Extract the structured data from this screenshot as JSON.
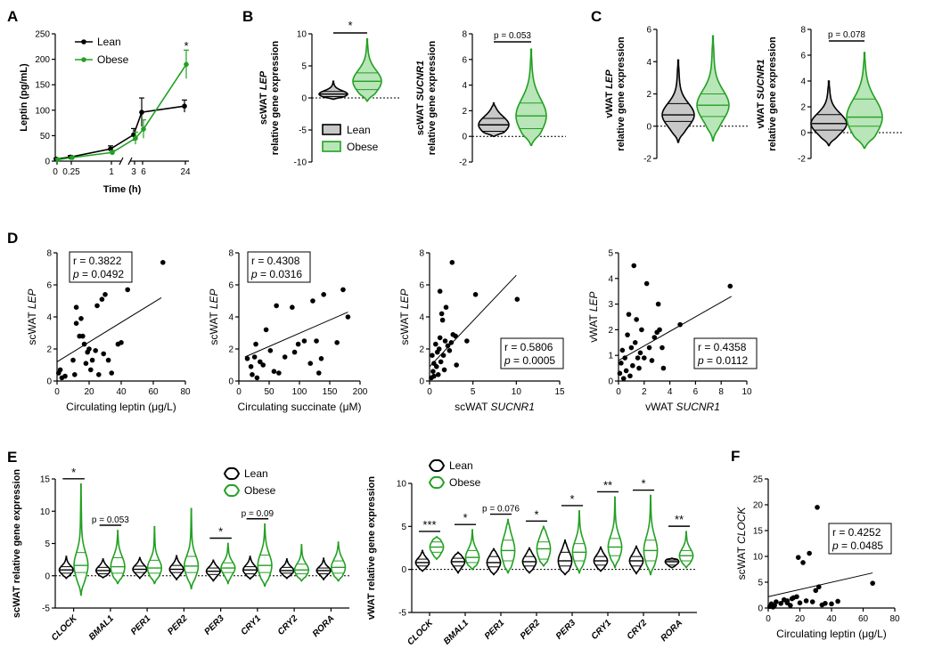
{
  "colors": {
    "lean": "#000000",
    "obese": "#22a022",
    "lean_fill": "#c8c8c8",
    "obese_fill": "#b8e6b8"
  },
  "chart_data": [
    {
      "id": "A",
      "letter": "A",
      "type": "line",
      "xlabel": "Time (h)",
      "ylabel": "Leptin (pg/mL)",
      "x_ticks": [
        "0",
        "0.25",
        "1",
        "3",
        "6",
        "24"
      ],
      "y_ticks": [
        "0",
        "50",
        "100",
        "150",
        "200",
        "250"
      ],
      "ylim": [
        0,
        250
      ],
      "legend": [
        "Lean",
        "Obese"
      ],
      "series": [
        {
          "name": "Lean",
          "x": [
            "0",
            "0.25",
            "1",
            "3",
            "6",
            "24"
          ],
          "values": [
            4,
            8,
            24,
            52,
            96,
            108
          ],
          "err": [
            2,
            3,
            6,
            12,
            28,
            12
          ]
        },
        {
          "name": "Obese",
          "x": [
            "0",
            "0.25",
            "1",
            "3",
            "6",
            "24"
          ],
          "values": [
            3,
            7,
            17,
            45,
            63,
            190
          ],
          "err": [
            2,
            2,
            4,
            12,
            18,
            28
          ]
        }
      ],
      "annotation": "*"
    },
    {
      "id": "B1",
      "letter": "B",
      "type": "violin",
      "ylabel_gene": "LEP",
      "ylabel_prefix": "scWAT ",
      "ylabel_line2": "relative gene expression",
      "y_ticks": [
        "-10",
        "-5",
        "0",
        "5",
        "10"
      ],
      "ylim": [
        -10,
        10
      ],
      "groups": [
        {
          "name": "Lean",
          "median": 0.6,
          "q1": 0.2,
          "q3": 1.0,
          "min": -0.2,
          "max": 2.6
        },
        {
          "name": "Obese",
          "median": 2.6,
          "q1": 1.3,
          "q3": 3.9,
          "min": -0.5,
          "max": 9.2
        }
      ],
      "significance": "*",
      "legend": [
        "Lean",
        "Obese"
      ]
    },
    {
      "id": "B2",
      "letter": "",
      "type": "violin",
      "ylabel_gene": "SUCNR1",
      "ylabel_prefix": "scWAT ",
      "ylabel_line2": "relative gene expression",
      "y_ticks": [
        "-2",
        "0",
        "2",
        "4",
        "6",
        "8"
      ],
      "ylim": [
        -2,
        8
      ],
      "groups": [
        {
          "name": "Lean",
          "median": 0.9,
          "q1": 0.4,
          "q3": 1.4,
          "min": 0.0,
          "max": 2.6
        },
        {
          "name": "Obese",
          "median": 1.6,
          "q1": 0.6,
          "q3": 2.6,
          "min": -0.7,
          "max": 6.8
        }
      ],
      "significance": "p = 0.053"
    },
    {
      "id": "C1",
      "letter": "C",
      "type": "violin",
      "ylabel_gene": "LEP",
      "ylabel_prefix": "vWAT ",
      "ylabel_line2": "relative gene expression",
      "y_ticks": [
        "-2",
        "0",
        "2",
        "4",
        "6"
      ],
      "ylim": [
        -2,
        6
      ],
      "groups": [
        {
          "name": "Lean",
          "median": 0.7,
          "q1": 0.3,
          "q3": 1.4,
          "min": -1.0,
          "max": 4.1
        },
        {
          "name": "Obese",
          "median": 1.3,
          "q1": 0.6,
          "q3": 2.0,
          "min": -0.9,
          "max": 5.6
        }
      ],
      "significance": ""
    },
    {
      "id": "C2",
      "letter": "",
      "type": "violin",
      "ylabel_gene": "SUCNR1",
      "ylabel_prefix": "vWAT ",
      "ylabel_line2": "relative gene expression",
      "y_ticks": [
        "-2",
        "0",
        "2",
        "4",
        "6",
        "8"
      ],
      "ylim": [
        -2,
        8
      ],
      "groups": [
        {
          "name": "Lean",
          "median": 0.7,
          "q1": 0.2,
          "q3": 1.4,
          "min": -1.0,
          "max": 4.0
        },
        {
          "name": "Obese",
          "median": 1.2,
          "q1": 0.5,
          "q3": 2.6,
          "min": -1.2,
          "max": 6.2
        }
      ],
      "significance": "p = 0.078"
    },
    {
      "id": "D1",
      "letter": "D",
      "type": "scatter",
      "xlabel_pre": "Circulating leptin (μg/L)",
      "xlabel_gene": "",
      "ylabel_pre": "scWAT ",
      "ylabel_gene": "LEP",
      "x_ticks": [
        "0",
        "20",
        "40",
        "60",
        "80"
      ],
      "xlim": [
        0,
        80
      ],
      "y_ticks": [
        "0",
        "2",
        "4",
        "6",
        "8"
      ],
      "ylim": [
        0,
        8
      ],
      "r": "r = 0.3822",
      "p_label": "p",
      "p_value": " = 0.0492",
      "box_pos": "top-left",
      "fit": [
        [
          0,
          1.2
        ],
        [
          65,
          5.2
        ]
      ],
      "points": [
        [
          1,
          0.5
        ],
        [
          2,
          0.7
        ],
        [
          5,
          0.3
        ],
        [
          10,
          1.3
        ],
        [
          11,
          0.4
        ],
        [
          12,
          3.6
        ],
        [
          12,
          4.6
        ],
        [
          14,
          2.8
        ],
        [
          15,
          3.9
        ],
        [
          16,
          2.8
        ],
        [
          17,
          2.3
        ],
        [
          18,
          1.1
        ],
        [
          19,
          1.8
        ],
        [
          20,
          2.0
        ],
        [
          21,
          0.7
        ],
        [
          22,
          1.3
        ],
        [
          25,
          4.7
        ],
        [
          26,
          0.4
        ],
        [
          28,
          5.1
        ],
        [
          29,
          1.7
        ],
        [
          30,
          5.4
        ],
        [
          32,
          1.3
        ],
        [
          34,
          0.5
        ],
        [
          38,
          2.3
        ],
        [
          40,
          2.4
        ],
        [
          44,
          5.7
        ],
        [
          66,
          7.4
        ],
        [
          3,
          0.2
        ],
        [
          24,
          1.9
        ]
      ]
    },
    {
      "id": "D2",
      "letter": "",
      "type": "scatter",
      "xlabel_pre": "Circulating succinate (μM)",
      "xlabel_gene": "",
      "ylabel_pre": "scWAT ",
      "ylabel_gene": "LEP",
      "x_ticks": [
        "0",
        "50",
        "100",
        "150",
        "200"
      ],
      "xlim": [
        0,
        200
      ],
      "y_ticks": [
        "0",
        "2",
        "4",
        "6",
        "8"
      ],
      "ylim": [
        0,
        8
      ],
      "r": "r = 0.4308",
      "p_label": "p",
      "p_value": " = 0.0316",
      "box_pos": "top-left",
      "fit": [
        [
          10,
          1.5
        ],
        [
          180,
          4.3
        ]
      ],
      "points": [
        [
          14,
          1.4
        ],
        [
          20,
          0.9
        ],
        [
          22,
          0.4
        ],
        [
          26,
          1.5
        ],
        [
          28,
          2.3
        ],
        [
          30,
          0.2
        ],
        [
          35,
          1.2
        ],
        [
          40,
          1.0
        ],
        [
          45,
          3.2
        ],
        [
          52,
          1.9
        ],
        [
          58,
          0.6
        ],
        [
          62,
          4.7
        ],
        [
          66,
          0.5
        ],
        [
          76,
          1.5
        ],
        [
          88,
          4.6
        ],
        [
          92,
          1.8
        ],
        [
          98,
          2.3
        ],
        [
          108,
          2.5
        ],
        [
          112,
          7.3
        ],
        [
          118,
          1.1
        ],
        [
          122,
          5.0
        ],
        [
          128,
          2.5
        ],
        [
          132,
          0.5
        ],
        [
          136,
          1.4
        ],
        [
          140,
          5.4
        ],
        [
          162,
          2.4
        ],
        [
          172,
          5.7
        ],
        [
          180,
          4.0
        ]
      ]
    },
    {
      "id": "D3",
      "letter": "",
      "type": "scatter",
      "xlabel_pre": "scWAT ",
      "xlabel_gene": "SUCNR1",
      "ylabel_pre": "scWAT ",
      "ylabel_gene": "LEP",
      "x_ticks": [
        "0",
        "5",
        "10",
        "15"
      ],
      "xlim": [
        0,
        15
      ],
      "y_ticks": [
        "0",
        "2",
        "4",
        "6",
        "8"
      ],
      "ylim": [
        0,
        8
      ],
      "r": "r = 0.5806",
      "p_label": "p",
      "p_value": " = 0.0005",
      "box_pos": "bottom-right",
      "fit": [
        [
          0,
          0.9
        ],
        [
          10,
          6.6
        ]
      ],
      "points": [
        [
          0.2,
          0.2
        ],
        [
          0.3,
          1.6
        ],
        [
          0.4,
          0.6
        ],
        [
          0.5,
          1.1
        ],
        [
          0.5,
          0.3
        ],
        [
          0.7,
          2.3
        ],
        [
          0.8,
          0.9
        ],
        [
          0.9,
          1.8
        ],
        [
          1.0,
          0.4
        ],
        [
          1.1,
          2.0
        ],
        [
          1.2,
          2.7
        ],
        [
          1.2,
          5.6
        ],
        [
          1.3,
          1.2
        ],
        [
          1.4,
          4.2
        ],
        [
          1.5,
          3.8
        ],
        [
          1.6,
          1.6
        ],
        [
          1.7,
          0.7
        ],
        [
          1.8,
          2.5
        ],
        [
          1.9,
          4.6
        ],
        [
          2.1,
          2.2
        ],
        [
          2.3,
          1.9
        ],
        [
          2.5,
          2.4
        ],
        [
          2.6,
          7.4
        ],
        [
          2.7,
          2.9
        ],
        [
          3.0,
          2.8
        ],
        [
          3.1,
          1.0
        ],
        [
          4.3,
          2.5
        ],
        [
          5.3,
          5.4
        ],
        [
          10.1,
          5.1
        ]
      ]
    },
    {
      "id": "D4",
      "letter": "",
      "type": "scatter",
      "xlabel_pre": "vWAT ",
      "xlabel_gene": "SUCNR1",
      "ylabel_pre": "vWAT ",
      "ylabel_gene": "LEP",
      "x_ticks": [
        "0",
        "2",
        "4",
        "6",
        "8",
        "10"
      ],
      "xlim": [
        0,
        10
      ],
      "y_ticks": [
        "0",
        "1",
        "2",
        "3",
        "4",
        "5"
      ],
      "ylim": [
        0,
        5
      ],
      "r": "r = 0.4358",
      "p_label": "p",
      "p_value": " = 0.0112",
      "box_pos": "bottom-right",
      "fit": [
        [
          0,
          0.8
        ],
        [
          8.8,
          3.3
        ]
      ],
      "points": [
        [
          0.1,
          0.3
        ],
        [
          0.2,
          0.7
        ],
        [
          0.3,
          1.2
        ],
        [
          0.4,
          0.1
        ],
        [
          0.5,
          0.9
        ],
        [
          0.6,
          0.4
        ],
        [
          0.7,
          1.8
        ],
        [
          0.8,
          2.6
        ],
        [
          0.9,
          0.2
        ],
        [
          1.0,
          1.3
        ],
        [
          1.1,
          0.6
        ],
        [
          1.2,
          4.5
        ],
        [
          1.3,
          1.5
        ],
        [
          1.4,
          2.4
        ],
        [
          1.5,
          0.9
        ],
        [
          1.6,
          0.5
        ],
        [
          1.7,
          1.1
        ],
        [
          1.8,
          2.0
        ],
        [
          2.0,
          0.9
        ],
        [
          2.2,
          3.8
        ],
        [
          2.4,
          1.3
        ],
        [
          2.6,
          0.8
        ],
        [
          2.8,
          1.7
        ],
        [
          3.0,
          1.9
        ],
        [
          3.2,
          2.0
        ],
        [
          3.4,
          1.3
        ],
        [
          3.5,
          0.5
        ],
        [
          4.8,
          2.2
        ],
        [
          8.7,
          3.7
        ],
        [
          3.1,
          3.0
        ]
      ]
    },
    {
      "id": "E1",
      "letter": "E",
      "type": "grouped-violin",
      "ylabel_prefix": "scWAT relative gene expression",
      "ylabel_gene": "",
      "y_ticks": [
        "-5",
        "0",
        "5",
        "10",
        "15"
      ],
      "ylim": [
        -5,
        15
      ],
      "legend": [
        "Lean",
        "Obese"
      ],
      "legend_pos": "top-center",
      "categories": [
        "CLOCK",
        "BMAL1",
        "PER1",
        "PER2",
        "PER3",
        "CRY1",
        "CRY2",
        "RORA"
      ],
      "lean": [
        [
          0.9,
          0.4,
          1.4,
          -0.4,
          3.0
        ],
        [
          0.8,
          0.3,
          1.3,
          -0.3,
          2.6
        ],
        [
          1.0,
          0.5,
          1.5,
          -0.4,
          2.8
        ],
        [
          1.0,
          0.5,
          1.6,
          -0.6,
          3.1
        ],
        [
          0.7,
          0.2,
          1.2,
          -0.8,
          2.4
        ],
        [
          0.9,
          0.3,
          1.4,
          -0.5,
          3.0
        ],
        [
          0.8,
          0.4,
          1.3,
          -0.4,
          2.6
        ],
        [
          0.8,
          0.3,
          1.2,
          -0.6,
          2.7
        ]
      ],
      "obese": [
        [
          1.6,
          0.5,
          3.6,
          -3.0,
          14.2
        ],
        [
          1.4,
          0.4,
          2.8,
          -1.2,
          7.0
        ],
        [
          1.2,
          0.4,
          2.4,
          -1.2,
          7.6
        ],
        [
          1.5,
          0.5,
          3.0,
          -2.0,
          10.4
        ],
        [
          1.2,
          0.5,
          2.0,
          -1.2,
          5.0
        ],
        [
          1.6,
          0.5,
          3.2,
          -1.6,
          8.0
        ],
        [
          0.9,
          0.3,
          1.8,
          -0.8,
          4.8
        ],
        [
          1.3,
          0.4,
          2.3,
          -0.8,
          5.2
        ]
      ],
      "sig": [
        "*",
        "p = 0.053",
        "",
        "",
        "*",
        "p = 0.09",
        "",
        ""
      ]
    },
    {
      "id": "E2",
      "letter": "",
      "type": "grouped-violin",
      "ylabel_prefix": "vWAT relative gene expression",
      "ylabel_gene": "",
      "y_ticks": [
        "-5",
        "0",
        "5",
        "10"
      ],
      "ylim": [
        -5,
        10
      ],
      "legend": [
        "Lean",
        "Obese"
      ],
      "legend_pos": "top-left",
      "categories": [
        "CLOCK",
        "BMAL1",
        "PER1",
        "PER2",
        "PER3",
        "CRY1",
        "CRY2",
        "RORA"
      ],
      "lean": [
        [
          0.8,
          0.4,
          1.2,
          -0.2,
          2.2
        ],
        [
          0.9,
          0.4,
          1.3,
          -0.4,
          2.0
        ],
        [
          0.8,
          0.3,
          1.5,
          -0.6,
          2.4
        ],
        [
          0.9,
          0.4,
          1.5,
          -0.4,
          2.5
        ],
        [
          1.0,
          0.4,
          2.0,
          -0.6,
          3.4
        ],
        [
          1.0,
          0.5,
          1.5,
          -0.2,
          2.6
        ],
        [
          1.0,
          0.4,
          1.5,
          -0.5,
          2.7
        ],
        [
          0.9,
          0.5,
          1.1,
          0.2,
          1.3
        ]
      ],
      "obese": [
        [
          2.6,
          2.0,
          3.2,
          1.2,
          3.8
        ],
        [
          1.4,
          0.8,
          2.2,
          0.0,
          4.6
        ],
        [
          2.2,
          1.0,
          3.4,
          -0.4,
          5.8
        ],
        [
          2.4,
          1.2,
          3.2,
          0.4,
          5.0
        ],
        [
          2.0,
          1.0,
          3.0,
          -0.4,
          6.8
        ],
        [
          2.6,
          1.6,
          3.6,
          0.2,
          8.4
        ],
        [
          2.2,
          1.0,
          3.4,
          -0.6,
          8.6
        ],
        [
          1.6,
          1.0,
          2.2,
          0.2,
          4.4
        ]
      ],
      "sig": [
        "***",
        "*",
        "p = 0.076",
        "*",
        "*",
        "**",
        "*",
        "**"
      ]
    },
    {
      "id": "F",
      "letter": "F",
      "type": "scatter",
      "xlabel_pre": "Circulating leptin (μg/L)",
      "xlabel_gene": "",
      "ylabel_pre": "scWAT ",
      "ylabel_gene": "CLOCK",
      "x_ticks": [
        "0",
        "20",
        "40",
        "60",
        "80"
      ],
      "xlim": [
        0,
        80
      ],
      "y_ticks": [
        "0",
        "5",
        "10",
        "15",
        "20",
        "25"
      ],
      "ylim": [
        0,
        25
      ],
      "r": "r = 0.4252",
      "p_label": "p",
      "p_value": " = 0.0485",
      "box_pos": "middle-right",
      "fit": [
        [
          0,
          2.2
        ],
        [
          66,
          6.8
        ]
      ],
      "points": [
        [
          1,
          0.3
        ],
        [
          2,
          0.8
        ],
        [
          4,
          0.5
        ],
        [
          5,
          1.2
        ],
        [
          8,
          0.9
        ],
        [
          10,
          1.6
        ],
        [
          12,
          1.4
        ],
        [
          14,
          0.5
        ],
        [
          15,
          1.8
        ],
        [
          16,
          2.0
        ],
        [
          18,
          2.2
        ],
        [
          19,
          9.8
        ],
        [
          20,
          1.0
        ],
        [
          22,
          8.8
        ],
        [
          24,
          1.4
        ],
        [
          26,
          10.6
        ],
        [
          28,
          1.2
        ],
        [
          30,
          3.4
        ],
        [
          31,
          19.5
        ],
        [
          32,
          4.1
        ],
        [
          34,
          0.6
        ],
        [
          36,
          0.9
        ],
        [
          40,
          0.8
        ],
        [
          44,
          1.3
        ],
        [
          66,
          4.8
        ],
        [
          3,
          0.2
        ],
        [
          12,
          1.0
        ]
      ]
    }
  ]
}
